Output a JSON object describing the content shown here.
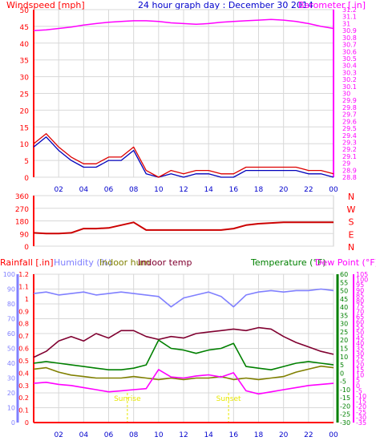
{
  "chart_data": [
    {
      "type": "line",
      "title": "24 hour graph day : December 30 2014",
      "left_axis_label": "Windspeed [mph]",
      "right_axis_label": "Barometer [.in]",
      "x_ticks": [
        "02",
        "04",
        "06",
        "08",
        "10",
        "12",
        "14",
        "16",
        "18",
        "20",
        "22",
        "00"
      ],
      "y_left_ticks": [
        "0",
        "5",
        "10",
        "15",
        "20",
        "25",
        "30",
        "35",
        "40",
        "45",
        "50"
      ],
      "ylim_left": [
        0,
        50
      ],
      "y_right_ticks": [
        "28.8",
        "28.9",
        "29",
        "29.1",
        "29.2",
        "29.3",
        "29.4",
        "29.5",
        "29.6",
        "29.7",
        "29.8",
        "29.9",
        "30",
        "30.1",
        "30.2",
        "30.3",
        "30.4",
        "30.5",
        "30.6",
        "30.7",
        "30.8",
        "30.9",
        "31",
        "31.1",
        "31.2"
      ],
      "ylim_right": [
        28.8,
        31.2
      ],
      "grid": true,
      "colors": {
        "wind": "#dd0000",
        "gust": "#0000bb",
        "barometer": "#ff00ff",
        "axis_left": "#ff0000",
        "axis_right": "#ff00ff",
        "title": "#0000cc",
        "ticks": "#0000cc"
      },
      "x": [
        0,
        1,
        2,
        3,
        4,
        5,
        6,
        7,
        8,
        9,
        10,
        11,
        12,
        13,
        14,
        15,
        16,
        17,
        18,
        19,
        20,
        21,
        22,
        23,
        24
      ],
      "series": [
        {
          "name": "Windspeed",
          "values": [
            10,
            13,
            9,
            6,
            4,
            4,
            6,
            6,
            9,
            2,
            0,
            2,
            1,
            2,
            2,
            1,
            1,
            3,
            3,
            3,
            3,
            3,
            2,
            2,
            1
          ]
        },
        {
          "name": "Gust",
          "values": [
            9,
            12,
            8,
            5,
            3,
            3,
            5,
            5,
            8,
            1,
            0,
            1,
            0,
            1,
            1,
            0,
            0,
            2,
            2,
            2,
            2,
            2,
            1,
            1,
            0
          ]
        },
        {
          "name": "Barometer",
          "values": [
            30.9,
            30.91,
            30.93,
            30.95,
            30.98,
            31.0,
            31.02,
            31.03,
            31.04,
            31.04,
            31.03,
            31.01,
            31.0,
            30.99,
            31.0,
            31.02,
            31.03,
            31.04,
            31.05,
            31.06,
            31.05,
            31.03,
            31.0,
            30.96,
            30.93
          ]
        }
      ]
    },
    {
      "type": "line",
      "right_axis_label": [
        "N",
        "W",
        "S",
        "E",
        "N"
      ],
      "y_left_ticks": [
        "0",
        "90",
        "180",
        "270",
        "360"
      ],
      "ylim": [
        0,
        360
      ],
      "colors": {
        "direction": "#cc0000",
        "axis": "#ff0000"
      },
      "x": [
        0,
        1,
        2,
        3,
        4,
        5,
        6,
        7,
        8,
        9,
        10,
        11,
        12,
        13,
        14,
        15,
        16,
        17,
        18,
        19,
        20,
        21,
        22,
        23,
        24
      ],
      "series": [
        {
          "name": "Wind direction",
          "values": [
            95,
            90,
            90,
            95,
            125,
            125,
            130,
            150,
            170,
            115,
            115,
            115,
            115,
            115,
            115,
            115,
            125,
            150,
            160,
            165,
            170,
            170,
            170,
            170,
            170
          ]
        }
      ]
    },
    {
      "type": "line",
      "labels": {
        "rain": "Rainfall [.in]",
        "hum": "Humidity (%)",
        "inhum": "Indoor hum",
        "intemp": "Indoor temp",
        "temp": "Temperature (°F)",
        "dew": "Dew Point (°F)"
      },
      "x_ticks": [
        "02",
        "04",
        "06",
        "08",
        "10",
        "12",
        "14",
        "16",
        "18",
        "20",
        "22",
        "00"
      ],
      "rain_ticks": [
        "0",
        "0.1",
        "0.2",
        "0.3",
        "0.4",
        "0.5",
        "0.6",
        "0.7",
        "0.8",
        "0.9",
        "1",
        "1.1",
        "1.2"
      ],
      "hum_ticks": [
        "0",
        "10",
        "20",
        "30",
        "40",
        "50",
        "60",
        "70",
        "80",
        "90",
        "100"
      ],
      "temp_ticks": [
        "-30",
        "-25",
        "-20",
        "-15",
        "-10",
        "-5",
        "0",
        "5",
        "10",
        "15",
        "20",
        "25",
        "30",
        "35",
        "40",
        "45",
        "50",
        "55",
        "60"
      ],
      "dew_ticks": [
        "-35",
        "-30",
        "-25",
        "-20",
        "-15",
        "-10",
        "-5",
        "0",
        "5",
        "10",
        "15",
        "20",
        "25",
        "30",
        "35",
        "40",
        "45",
        "50",
        "55",
        "60",
        "65",
        "70",
        "75",
        "80",
        "85",
        "90",
        "95",
        "100",
        "105"
      ],
      "ylim_rain": [
        0,
        1.2
      ],
      "ylim_hum": [
        0,
        100
      ],
      "ylim_temp": [
        -30,
        60
      ],
      "ylim_dew": [
        -35,
        105
      ],
      "annotations": [
        "Sunrise",
        "Sunset"
      ],
      "colors": {
        "rain": "#ff0000",
        "hum": "#8080ff",
        "inhum": "#808000",
        "intemp": "#800030",
        "temp": "#008000",
        "dew": "#ff00ff",
        "note": "#e8e800"
      },
      "x": [
        0,
        1,
        2,
        3,
        4,
        5,
        6,
        7,
        8,
        9,
        10,
        11,
        12,
        13,
        14,
        15,
        16,
        17,
        18,
        19,
        20,
        21,
        22,
        23,
        24
      ],
      "series": [
        {
          "name": "Humidity",
          "axis": "hum",
          "values": [
            87,
            88,
            86,
            87,
            88,
            86,
            87,
            88,
            87,
            86,
            85,
            78,
            84,
            86,
            88,
            85,
            78,
            86,
            88,
            89,
            88,
            89,
            89,
            90,
            89
          ]
        },
        {
          "name": "Indoor hum",
          "axis": "hum",
          "values": [
            36,
            37,
            34,
            32,
            31,
            30,
            30,
            30,
            31,
            30,
            29,
            30,
            29,
            30,
            30,
            31,
            29,
            30,
            29,
            30,
            31,
            34,
            36,
            38,
            37
          ]
        },
        {
          "name": "Indoor temp",
          "axis": "hum",
          "values": [
            44,
            48,
            55,
            58,
            55,
            60,
            57,
            62,
            62,
            58,
            56,
            58,
            57,
            60,
            61,
            62,
            63,
            62,
            64,
            63,
            58,
            54,
            51,
            48,
            46
          ]
        },
        {
          "name": "Temperature",
          "axis": "temp",
          "values": [
            6,
            7,
            6,
            5,
            4,
            3,
            2,
            2,
            3,
            5,
            20,
            15,
            14,
            12,
            14,
            15,
            18,
            4,
            3,
            2,
            4,
            6,
            7,
            6,
            5
          ]
        },
        {
          "name": "Dew Point",
          "axis": "dew",
          "values": [
            2,
            3,
            1,
            0,
            -2,
            -4,
            -6,
            -5,
            -4,
            -3,
            15,
            8,
            7,
            9,
            10,
            8,
            12,
            -5,
            -8,
            -6,
            -4,
            -2,
            0,
            1,
            2
          ]
        },
        {
          "name": "Rainfall",
          "axis": "rain",
          "values": [
            0,
            0,
            0,
            0,
            0,
            0,
            0,
            0,
            0,
            0,
            0,
            0,
            0,
            0,
            0,
            0,
            0,
            0,
            0,
            0,
            0,
            0,
            0,
            0,
            0
          ]
        }
      ],
      "events": [
        {
          "name": "Sunrise",
          "x": 7.5
        },
        {
          "name": "Sunset",
          "x": 15.6
        }
      ]
    }
  ]
}
